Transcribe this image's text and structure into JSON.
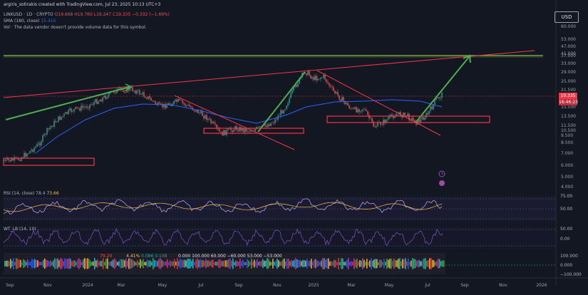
{
  "header": {
    "attribution": "argiris_sotirakis created with TradingView.com, Jul 23, 2025 10:13 UTC+3",
    "symbol_line": {
      "symbol": "LINKUSD · 1D · CRYPTO",
      "open": "O19.668",
      "high": "H19.760",
      "low": "L19.247",
      "close": "C19.335",
      "change": "−0.332 (−1.69%)"
    },
    "sma_label": "SMA (180, close)",
    "sma_value": "15.416",
    "vol_note": "Vol · The data vendor doesn't provide volume data for this symbol."
  },
  "currency_button": "USD",
  "price_axis": [
    "60.000",
    "53.000",
    "47.000",
    "41.000",
    "37.000",
    "33.000",
    "29.000",
    "25.000",
    "21.500",
    "18.500",
    "15.500",
    "13.500",
    "11.500",
    "10.500",
    "9.500",
    "8.500",
    "7.000",
    "6.000",
    "5.000",
    "4.000"
  ],
  "price_tags": {
    "last_price": "19.335",
    "countdown": "16:46:23"
  },
  "time_axis": [
    "Sep",
    "Nov",
    "2024",
    "Mar",
    "May",
    "Jul",
    "Sep",
    "Nov",
    "2025",
    "Mar",
    "May",
    "Jul",
    "Sep",
    "Nov",
    "2026"
  ],
  "rsi": {
    "label": "RSI (14, close)",
    "value_a": "78.4",
    "value_b": "73.66",
    "levels": [
      "75.00",
      "50.00",
      "25.00"
    ]
  },
  "wt": {
    "label": "WT_LB (14, 10)",
    "value_a": "",
    "levels": [
      "50.00",
      "0.00",
      "-50.00"
    ]
  },
  "osc3": {
    "values_text": "0.000  100.000  60.000  −60.000  53.000  −53.000",
    "small_values": [
      "79.20",
      "4.41%",
      "0.086",
      "0.108"
    ],
    "levels": [
      "100.000",
      "0.000",
      "−100.000"
    ]
  },
  "colors": {
    "candle_up": "#26a69a",
    "candle_down": "#ef5350",
    "sma": "#2962ff",
    "trend_green": "#4caf50",
    "trend_red": "#f23645",
    "level_line": "#8bc34a",
    "rsi_line": "#7e57c2"
  },
  "icons": {
    "alert": "alert-clock-icon",
    "flag": "flag-icon"
  }
}
